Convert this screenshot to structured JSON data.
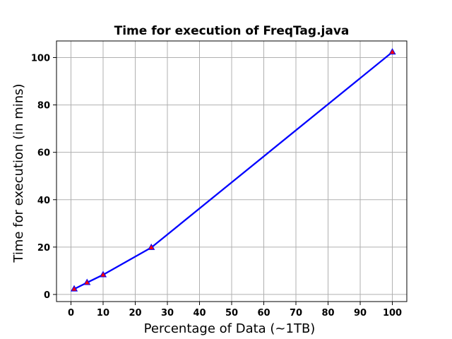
{
  "chart_data": {
    "type": "line",
    "title": "Time for execution of FreqTag.java",
    "xlabel": "Percentage of Data (~1TB)",
    "ylabel": "Time for execution (in mins)",
    "xlim": [
      -4.5,
      104.5
    ],
    "ylim": [
      -3,
      107
    ],
    "xticks": [
      0,
      10,
      20,
      30,
      40,
      50,
      60,
      70,
      80,
      90,
      100
    ],
    "yticks": [
      0,
      20,
      40,
      60,
      80,
      100
    ],
    "grid": true,
    "series": [
      {
        "x": [
          1,
          5,
          10,
          25,
          100
        ],
        "y": [
          2.3,
          5.0,
          8.3,
          19.8,
          102.3
        ],
        "line_color": "#0000ff",
        "marker": "triangle-up",
        "marker_face_color": "#ff0000",
        "marker_edge_color": "#0000ff"
      }
    ]
  }
}
